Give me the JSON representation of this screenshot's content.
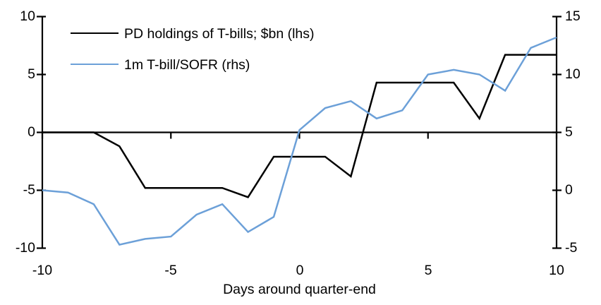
{
  "chart_data": {
    "type": "line",
    "x": [
      -10,
      -9,
      -8,
      -7,
      -6,
      -5,
      -4,
      -3,
      -2,
      -1,
      0,
      1,
      2,
      3,
      4,
      5,
      6,
      7,
      8,
      9,
      10
    ],
    "x_range": [
      -10,
      10
    ],
    "x_ticks": [
      -10,
      -5,
      0,
      5,
      10
    ],
    "series": [
      {
        "name": "PD holdings of T-bills; $bn (lhs)",
        "axis": "lhs",
        "color": "#000000",
        "values": [
          0.0,
          0.0,
          0.0,
          -1.2,
          -4.8,
          -4.8,
          -4.8,
          -4.8,
          -5.6,
          -2.1,
          -2.1,
          -2.1,
          -3.8,
          4.3,
          4.3,
          4.3,
          4.3,
          1.2,
          6.7,
          6.7,
          6.7
        ]
      },
      {
        "name": "1m T-bill/SOFR (rhs)",
        "axis": "rhs",
        "color": "#6CA0D8",
        "values": [
          0.0,
          -0.2,
          -1.2,
          -4.7,
          -4.2,
          -4.0,
          -2.1,
          -1.2,
          -3.6,
          -2.3,
          5.2,
          7.1,
          7.7,
          6.2,
          6.9,
          10.0,
          10.4,
          10.0,
          8.6,
          12.3,
          13.2
        ]
      }
    ],
    "xlabel": "Days around quarter-end",
    "left_axis": {
      "min": -10,
      "max": 10,
      "ticks": [
        10,
        5,
        0,
        -5,
        -10
      ],
      "labels": [
        "10",
        "5",
        "0",
        "-5",
        "-10"
      ]
    },
    "right_axis": {
      "min": -5,
      "max": 15,
      "ticks": [
        15,
        10,
        5,
        0,
        -5
      ],
      "labels": [
        "15",
        "10",
        "5",
        "0",
        "-5"
      ]
    },
    "x_tick_labels": [
      "-10",
      "-5",
      "0",
      "5",
      "10"
    ],
    "grid": false,
    "legend_position": "top-left",
    "zero_line": true
  }
}
